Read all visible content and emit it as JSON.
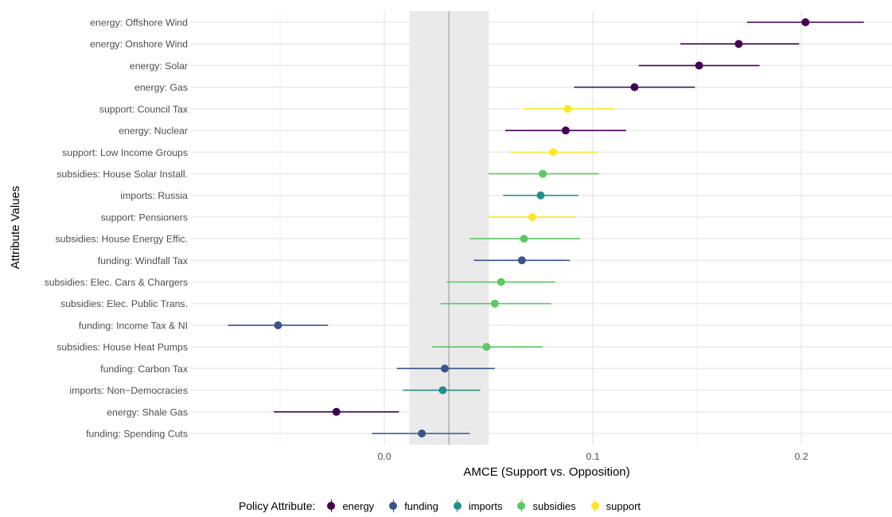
{
  "chart_data": {
    "type": "scatter",
    "subtype": "coefficient-plot",
    "xlabel": "AMCE (Support vs. Opposition)",
    "ylabel": "Attribute Values",
    "xlim": [
      -0.092,
      0.242
    ],
    "xticks": [
      0.0,
      0.1,
      0.2
    ],
    "xtick_labels": [
      "0.0",
      "0.1",
      "0.2"
    ],
    "grid": true,
    "reference_line": 0.031,
    "reference_band": [
      0.012,
      0.05
    ],
    "legend": {
      "title": "Policy Attribute:",
      "placement": "bottom",
      "entries": [
        "energy",
        "funding",
        "imports",
        "subsidies",
        "support"
      ]
    },
    "colors": {
      "energy": "#440154",
      "funding": "#3b528b",
      "imports": "#21908c",
      "subsidies": "#5dc863",
      "support": "#fde725",
      "band": "#e8e8e8",
      "reference": "#b3b3b3",
      "grid": "#ebebeb"
    },
    "points": [
      {
        "label": "energy: Offshore Wind",
        "group": "energy",
        "estimate": 0.202,
        "lower": 0.174,
        "upper": 0.23
      },
      {
        "label": "energy: Onshore Wind",
        "group": "energy",
        "estimate": 0.17,
        "lower": 0.142,
        "upper": 0.199
      },
      {
        "label": "energy: Solar",
        "group": "energy",
        "estimate": 0.151,
        "lower": 0.122,
        "upper": 0.18
      },
      {
        "label": "energy: Gas",
        "group": "energy",
        "estimate": 0.12,
        "lower": 0.091,
        "upper": 0.149
      },
      {
        "label": "support: Council Tax",
        "group": "support",
        "estimate": 0.088,
        "lower": 0.067,
        "upper": 0.11
      },
      {
        "label": "energy: Nuclear",
        "group": "energy",
        "estimate": 0.087,
        "lower": 0.058,
        "upper": 0.116
      },
      {
        "label": "support: Low Income Groups",
        "group": "support",
        "estimate": 0.081,
        "lower": 0.06,
        "upper": 0.102
      },
      {
        "label": "subsidies: House Solar Install.",
        "group": "subsidies",
        "estimate": 0.076,
        "lower": 0.05,
        "upper": 0.103
      },
      {
        "label": "imports: Russia",
        "group": "imports",
        "estimate": 0.075,
        "lower": 0.057,
        "upper": 0.093
      },
      {
        "label": "support: Pensioners",
        "group": "support",
        "estimate": 0.071,
        "lower": 0.05,
        "upper": 0.092
      },
      {
        "label": "subsidies: House Energy Effic.",
        "group": "subsidies",
        "estimate": 0.067,
        "lower": 0.041,
        "upper": 0.094
      },
      {
        "label": "funding: Windfall Tax",
        "group": "funding",
        "estimate": 0.066,
        "lower": 0.043,
        "upper": 0.089
      },
      {
        "label": "subsidies: Elec. Cars & Chargers",
        "group": "subsidies",
        "estimate": 0.056,
        "lower": 0.03,
        "upper": 0.082
      },
      {
        "label": "subsidies: Elec. Public Trans.",
        "group": "subsidies",
        "estimate": 0.053,
        "lower": 0.027,
        "upper": 0.08
      },
      {
        "label": "funding: Income Tax & NI",
        "group": "funding",
        "estimate": -0.051,
        "lower": -0.075,
        "upper": -0.027
      },
      {
        "label": "subsidies: House Heat Pumps",
        "group": "subsidies",
        "estimate": 0.049,
        "lower": 0.023,
        "upper": 0.076
      },
      {
        "label": "funding: Carbon Tax",
        "group": "funding",
        "estimate": 0.029,
        "lower": 0.006,
        "upper": 0.053
      },
      {
        "label": "imports: Non−Democracies",
        "group": "imports",
        "estimate": 0.028,
        "lower": 0.009,
        "upper": 0.046
      },
      {
        "label": "energy: Shale Gas",
        "group": "energy",
        "estimate": -0.023,
        "lower": -0.053,
        "upper": 0.007
      },
      {
        "label": "funding: Spending Cuts",
        "group": "funding",
        "estimate": 0.018,
        "lower": -0.006,
        "upper": 0.041
      }
    ]
  }
}
